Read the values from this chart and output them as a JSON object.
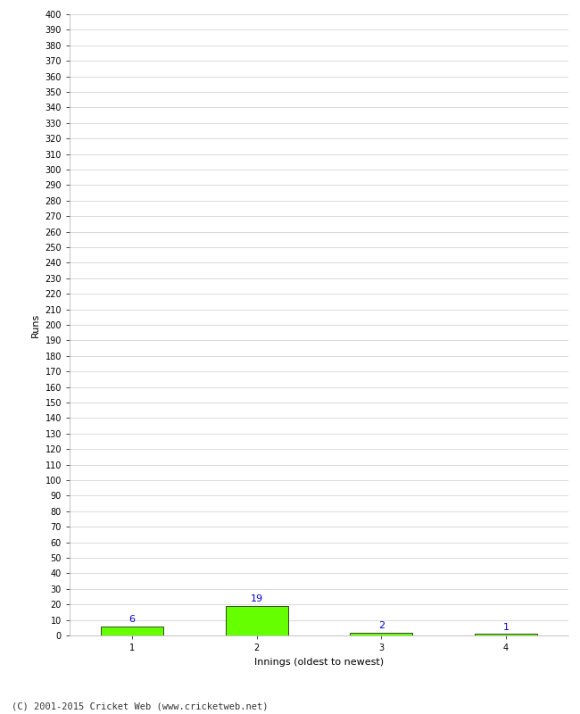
{
  "categories": [
    1,
    2,
    3,
    4
  ],
  "values": [
    6,
    19,
    2,
    1
  ],
  "bar_color": "#66ff00",
  "bar_edge_color": "#000000",
  "xlabel": "Innings (oldest to newest)",
  "ylabel": "Runs",
  "ylim": [
    0,
    400
  ],
  "yticks": [
    0,
    10,
    20,
    30,
    40,
    50,
    60,
    70,
    80,
    90,
    100,
    110,
    120,
    130,
    140,
    150,
    160,
    170,
    180,
    190,
    200,
    210,
    220,
    230,
    240,
    250,
    260,
    270,
    280,
    290,
    300,
    310,
    320,
    330,
    340,
    350,
    360,
    370,
    380,
    390,
    400
  ],
  "annotation_color": "#0000cc",
  "annotation_fontsize": 8,
  "label_fontsize": 8,
  "tick_fontsize": 7,
  "footer_text": "(C) 2001-2015 Cricket Web (www.cricketweb.net)",
  "footer_fontsize": 7.5,
  "background_color": "#ffffff",
  "grid_color": "#cccccc",
  "bar_width": 0.5
}
